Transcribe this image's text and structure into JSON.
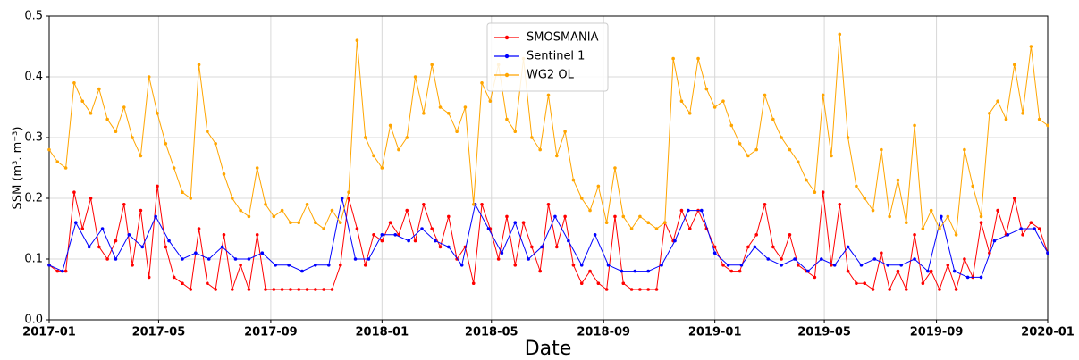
{
  "chart_data": {
    "type": "line",
    "ylabel": "SSM (m³. m⁻³)",
    "xlabel": "Date",
    "xlim": [
      2017,
      2020
    ],
    "ylim": [
      0,
      0.5
    ],
    "xticks": [
      {
        "value": 2017,
        "label": "2017-01"
      },
      {
        "value": 2017.3288,
        "label": "2017-05"
      },
      {
        "value": 2017.6658,
        "label": "2017-09"
      },
      {
        "value": 2018,
        "label": "2018-01"
      },
      {
        "value": 2018.3288,
        "label": "2018-05"
      },
      {
        "value": 2018.6658,
        "label": "2018-09"
      },
      {
        "value": 2019,
        "label": "2019-01"
      },
      {
        "value": 2019.3288,
        "label": "2019-05"
      },
      {
        "value": 2019.6658,
        "label": "2019-09"
      },
      {
        "value": 2020,
        "label": "2020-01"
      }
    ],
    "yticks": [
      {
        "value": 0,
        "label": "0.0"
      },
      0.1,
      0.2,
      0.3,
      0.4,
      0.5
    ],
    "grid": true,
    "legend": "upper center",
    "x": [
      2017,
      2017.025,
      2017.05,
      2017.075,
      2017.1,
      2017.125,
      2017.15,
      2017.175,
      2017.2,
      2017.225,
      2017.25,
      2017.275,
      2017.3,
      2017.325,
      2017.35,
      2017.375,
      2017.4,
      2017.425,
      2017.45,
      2017.475,
      2017.5,
      2017.525,
      2017.55,
      2017.575,
      2017.6,
      2017.625,
      2017.65,
      2017.675,
      2017.7,
      2017.725,
      2017.75,
      2017.775,
      2017.8,
      2017.825,
      2017.85,
      2017.875,
      2017.9,
      2017.925,
      2017.95,
      2017.975,
      2018,
      2018.025,
      2018.05,
      2018.075,
      2018.1,
      2018.125,
      2018.15,
      2018.175,
      2018.2,
      2018.225,
      2018.25,
      2018.275,
      2018.3,
      2018.325,
      2018.35,
      2018.375,
      2018.4,
      2018.425,
      2018.45,
      2018.475,
      2018.5,
      2018.525,
      2018.55,
      2018.575,
      2018.6,
      2018.625,
      2018.65,
      2018.675,
      2018.7,
      2018.725,
      2018.75,
      2018.775,
      2018.8,
      2018.825,
      2018.85,
      2018.875,
      2018.9,
      2018.925,
      2018.95,
      2018.975,
      2019,
      2019.025,
      2019.05,
      2019.075,
      2019.1,
      2019.125,
      2019.15,
      2019.175,
      2019.2,
      2019.225,
      2019.25,
      2019.275,
      2019.3,
      2019.325,
      2019.35,
      2019.375,
      2019.4,
      2019.425,
      2019.45,
      2019.475,
      2019.5,
      2019.525,
      2019.55,
      2019.575,
      2019.6,
      2019.625,
      2019.65,
      2019.675,
      2019.7,
      2019.725,
      2019.75,
      2019.775,
      2019.8,
      2019.825,
      2019.85,
      2019.875,
      2019.9,
      2019.925,
      2019.95,
      2019.975,
      2020
    ],
    "series": [
      {
        "name": "SMOSMANIA",
        "color": "#ff0000",
        "values": [
          0.09,
          0.08,
          0.08,
          0.21,
          0.15,
          0.2,
          0.12,
          0.1,
          0.13,
          0.19,
          0.09,
          0.18,
          0.07,
          0.22,
          0.12,
          0.07,
          0.06,
          0.05,
          0.15,
          0.06,
          0.05,
          0.14,
          0.05,
          0.09,
          0.05,
          0.14,
          0.05,
          0.05,
          0.05,
          0.05,
          0.05,
          0.05,
          0.05,
          0.05,
          0.05,
          0.09,
          0.2,
          0.15,
          0.09,
          0.14,
          0.13,
          0.16,
          0.14,
          0.18,
          0.13,
          0.19,
          0.15,
          0.12,
          0.17,
          0.1,
          0.12,
          0.06,
          0.19,
          0.15,
          0.1,
          0.17,
          0.09,
          0.16,
          0.12,
          0.08,
          0.19,
          0.12,
          0.17,
          0.09,
          0.06,
          0.08,
          0.06,
          0.05,
          0.17,
          0.06,
          0.05,
          0.05,
          0.05,
          0.05,
          0.16,
          0.13,
          0.18,
          0.15,
          0.18,
          0.15,
          0.12,
          0.09,
          0.08,
          0.08,
          0.12,
          0.14,
          0.19,
          0.12,
          0.1,
          0.14,
          0.09,
          0.08,
          0.07,
          0.21,
          0.09,
          0.19,
          0.08,
          0.06,
          0.06,
          0.05,
          0.11,
          0.05,
          0.08,
          0.05,
          0.14,
          0.06,
          0.08,
          0.05,
          0.09,
          0.05,
          0.1,
          0.07,
          0.16,
          0.11,
          0.18,
          0.14,
          0.2,
          0.14,
          0.16,
          0.15,
          0.11
        ]
      },
      {
        "name": "Sentinel 1",
        "color": "#0000ff",
        "x": [
          2017,
          2017.04,
          2017.08,
          2017.12,
          2017.16,
          2017.2,
          2017.24,
          2017.28,
          2017.32,
          2017.36,
          2017.4,
          2017.44,
          2017.48,
          2017.52,
          2017.56,
          2017.6,
          2017.64,
          2017.68,
          2017.72,
          2017.76,
          2017.8,
          2017.84,
          2017.88,
          2017.92,
          2017.96,
          2018,
          2018.04,
          2018.08,
          2018.12,
          2018.16,
          2018.2,
          2018.24,
          2018.28,
          2018.32,
          2018.36,
          2018.4,
          2018.44,
          2018.48,
          2018.52,
          2018.56,
          2018.6,
          2018.64,
          2018.68,
          2018.72,
          2018.76,
          2018.8,
          2018.84,
          2018.88,
          2018.92,
          2018.96,
          2019,
          2019.04,
          2019.08,
          2019.12,
          2019.16,
          2019.2,
          2019.24,
          2019.28,
          2019.32,
          2019.36,
          2019.4,
          2019.44,
          2019.48,
          2019.52,
          2019.56,
          2019.6,
          2019.64,
          2019.68,
          2019.72,
          2019.76,
          2019.8,
          2019.84,
          2019.88,
          2019.92,
          2019.96,
          2020
        ],
        "values": [
          0.09,
          0.08,
          0.16,
          0.12,
          0.15,
          0.1,
          0.14,
          0.12,
          0.17,
          0.13,
          0.1,
          0.11,
          0.1,
          0.12,
          0.1,
          0.1,
          0.11,
          0.09,
          0.09,
          0.08,
          0.09,
          0.09,
          0.2,
          0.1,
          0.1,
          0.14,
          0.14,
          0.13,
          0.15,
          0.13,
          0.12,
          0.09,
          0.19,
          0.15,
          0.11,
          0.16,
          0.1,
          0.12,
          0.17,
          0.13,
          0.09,
          0.14,
          0.09,
          0.08,
          0.08,
          0.08,
          0.09,
          0.13,
          0.18,
          0.18,
          0.11,
          0.09,
          0.09,
          0.12,
          0.1,
          0.09,
          0.1,
          0.08,
          0.1,
          0.09,
          0.12,
          0.09,
          0.1,
          0.09,
          0.09,
          0.1,
          0.08,
          0.17,
          0.08,
          0.07,
          0.07,
          0.13,
          0.14,
          0.15,
          0.15,
          0.11
        ]
      },
      {
        "name": "WG2 OL",
        "color": "#ffa500",
        "values": [
          0.28,
          0.26,
          0.25,
          0.39,
          0.36,
          0.34,
          0.38,
          0.33,
          0.31,
          0.35,
          0.3,
          0.27,
          0.4,
          0.34,
          0.29,
          0.25,
          0.21,
          0.2,
          0.42,
          0.31,
          0.29,
          0.24,
          0.2,
          0.18,
          0.17,
          0.25,
          0.19,
          0.17,
          0.18,
          0.16,
          0.16,
          0.19,
          0.16,
          0.15,
          0.18,
          0.16,
          0.21,
          0.46,
          0.3,
          0.27,
          0.25,
          0.32,
          0.28,
          0.3,
          0.4,
          0.34,
          0.42,
          0.35,
          0.34,
          0.31,
          0.35,
          0.19,
          0.39,
          0.36,
          0.42,
          0.33,
          0.31,
          0.43,
          0.3,
          0.28,
          0.37,
          0.27,
          0.31,
          0.23,
          0.2,
          0.18,
          0.22,
          0.16,
          0.25,
          0.17,
          0.15,
          0.17,
          0.16,
          0.15,
          0.16,
          0.43,
          0.36,
          0.34,
          0.43,
          0.38,
          0.35,
          0.36,
          0.32,
          0.29,
          0.27,
          0.28,
          0.37,
          0.33,
          0.3,
          0.28,
          0.26,
          0.23,
          0.21,
          0.37,
          0.27,
          0.47,
          0.3,
          0.22,
          0.2,
          0.18,
          0.28,
          0.17,
          0.23,
          0.16,
          0.32,
          0.15,
          0.18,
          0.15,
          0.17,
          0.14,
          0.28,
          0.22,
          0.17,
          0.34,
          0.36,
          0.33,
          0.42,
          0.34,
          0.45,
          0.33,
          0.32
        ]
      }
    ]
  }
}
